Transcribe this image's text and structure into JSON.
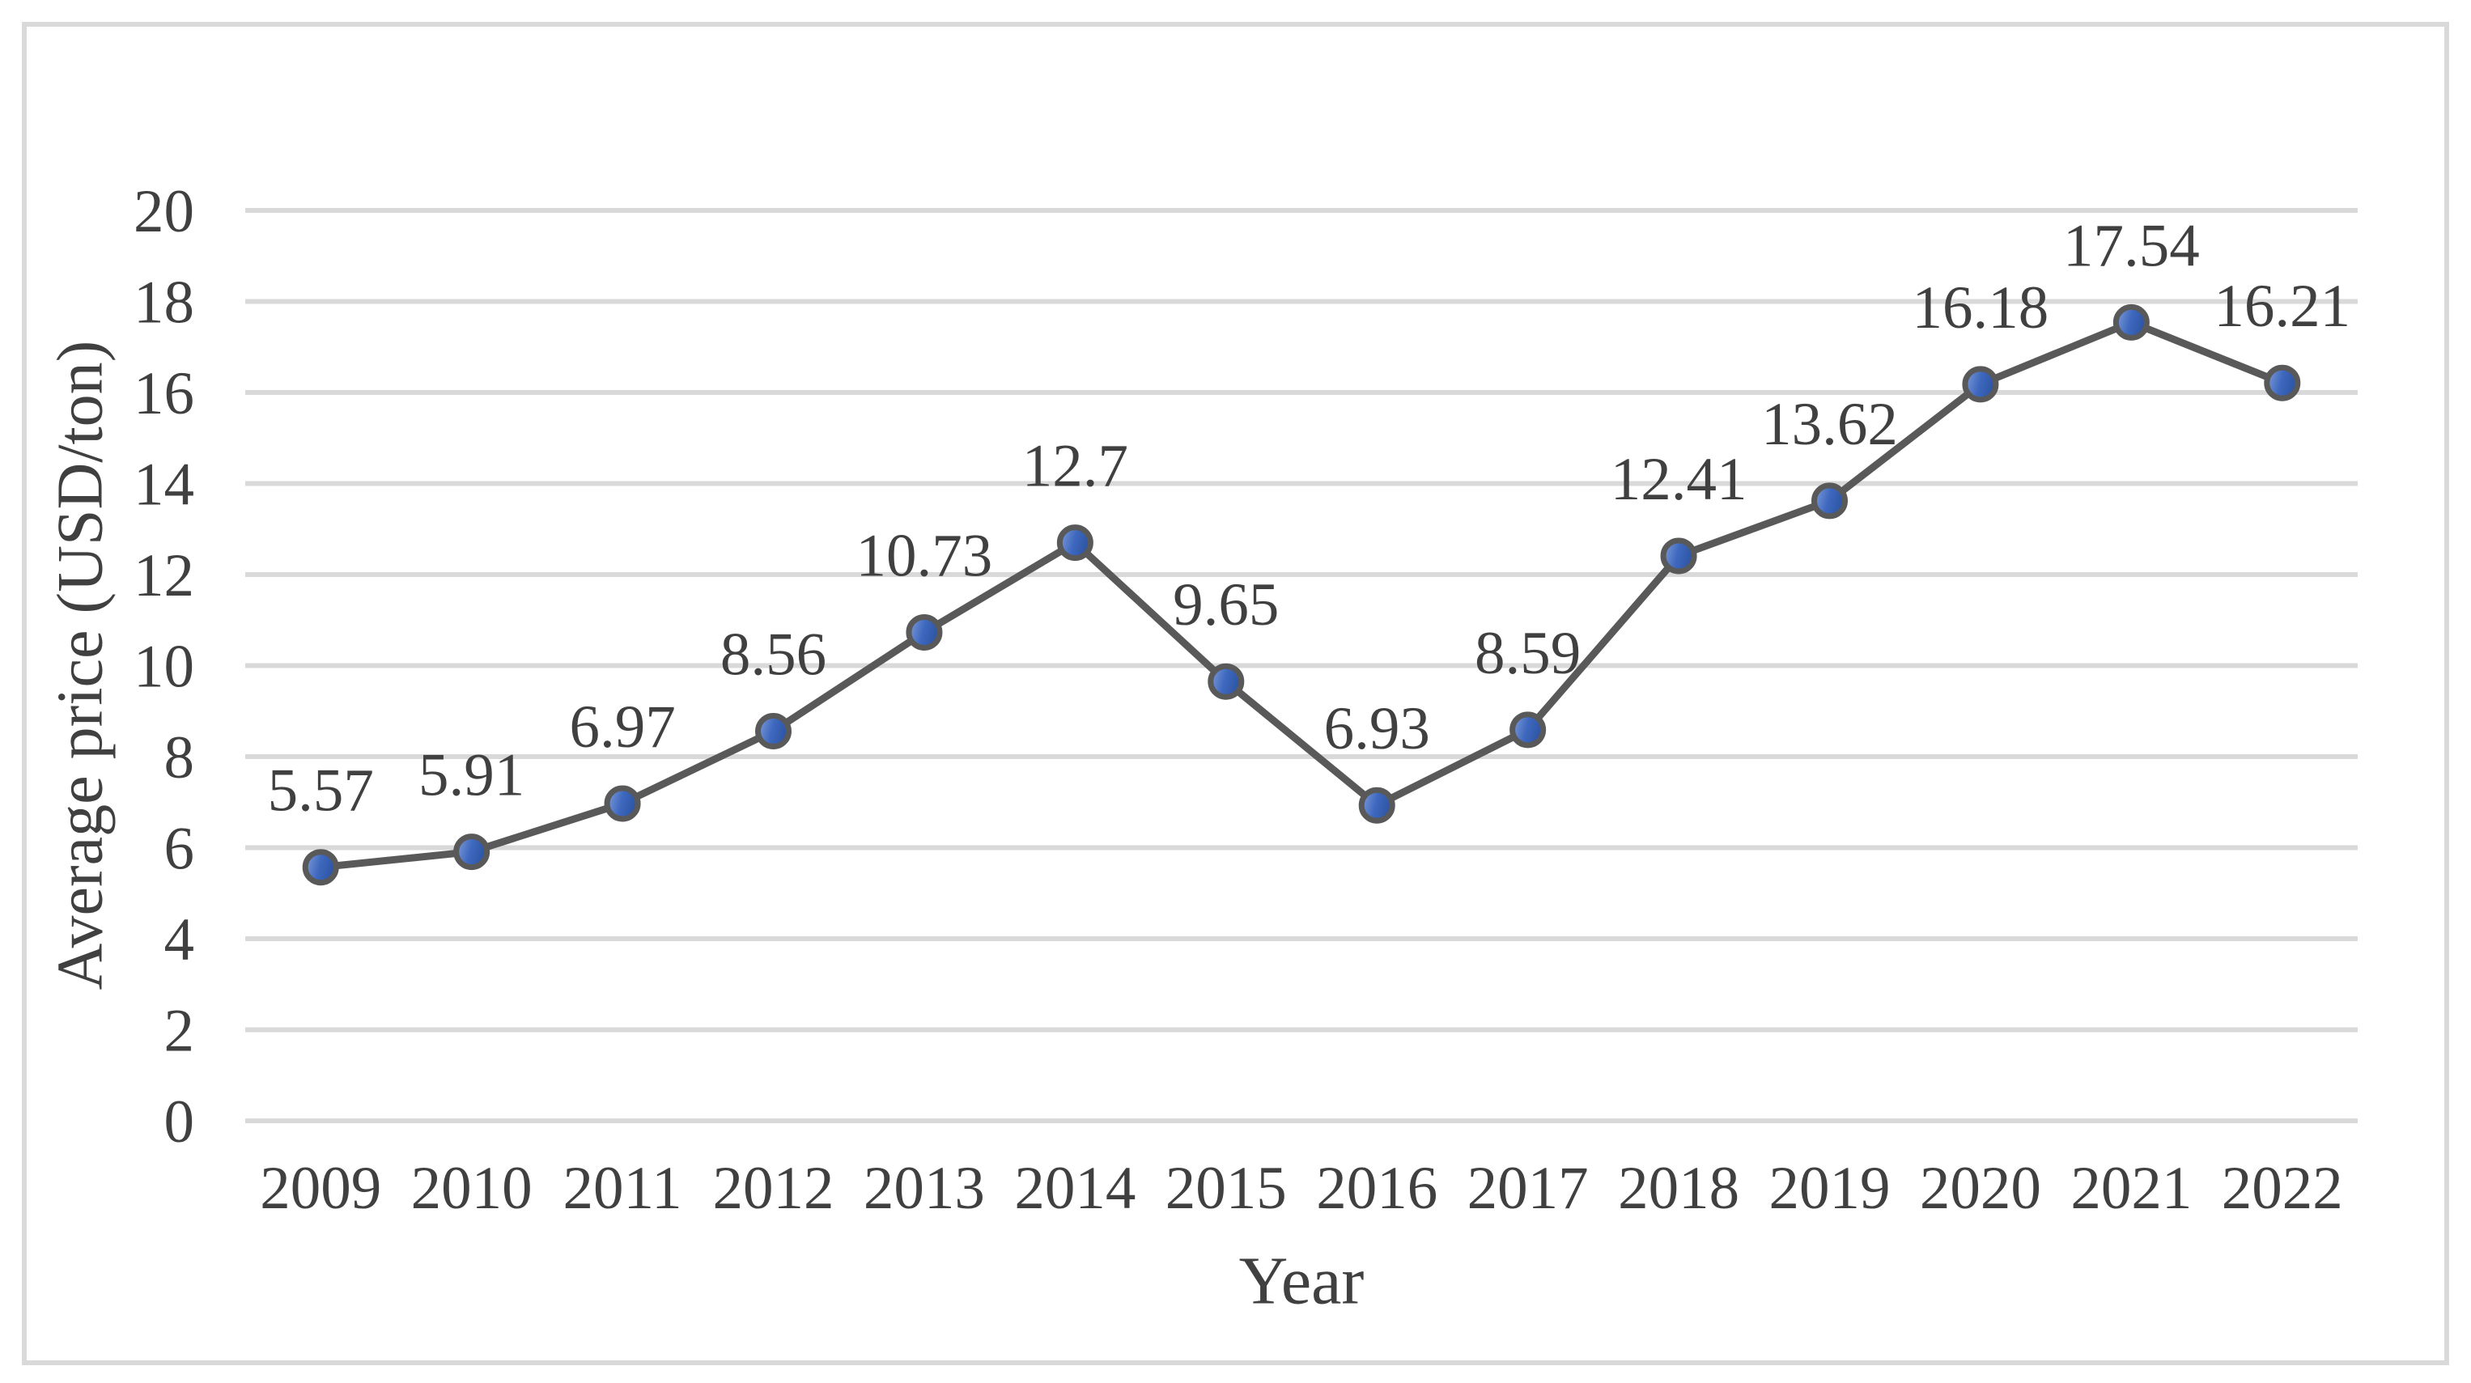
{
  "chart_data": {
    "type": "line",
    "title": "",
    "xlabel": "Year",
    "ylabel": "Average price (USD/ton)",
    "categories": [
      "2009",
      "2010",
      "2011",
      "2012",
      "2013",
      "2014",
      "2015",
      "2016",
      "2017",
      "2018",
      "2019",
      "2020",
      "2021",
      "2022"
    ],
    "series": [
      {
        "name": "Average price (USD/ton)",
        "values": [
          5.57,
          5.91,
          6.97,
          8.56,
          10.73,
          12.7,
          9.65,
          6.93,
          8.59,
          12.41,
          13.62,
          16.18,
          17.54,
          16.21
        ],
        "labels": [
          "5.57",
          "5.91",
          "6.97",
          "8.56",
          "10.73",
          "12.7",
          "9.65",
          "6.93",
          "8.59",
          "12.41",
          "13.62",
          "16.18",
          "17.54",
          "16.21"
        ]
      }
    ],
    "ylim": [
      0,
      20
    ],
    "ytick_interval": 2,
    "yticks": [
      "0",
      "2",
      "4",
      "6",
      "8",
      "10",
      "12",
      "14",
      "16",
      "18",
      "20"
    ],
    "grid": true,
    "legend_position": "none",
    "marker": "circle",
    "colors": {
      "line": "#595959",
      "marker_ring": "#595959",
      "marker_fill_light": "#9FB6E3",
      "marker_fill": "#4472C4",
      "marker_fill_dark": "#2E55A4",
      "gridline": "#D9D9D9",
      "text": "#404040",
      "border": "#D9D9D9",
      "background": "#FFFFFF"
    }
  }
}
